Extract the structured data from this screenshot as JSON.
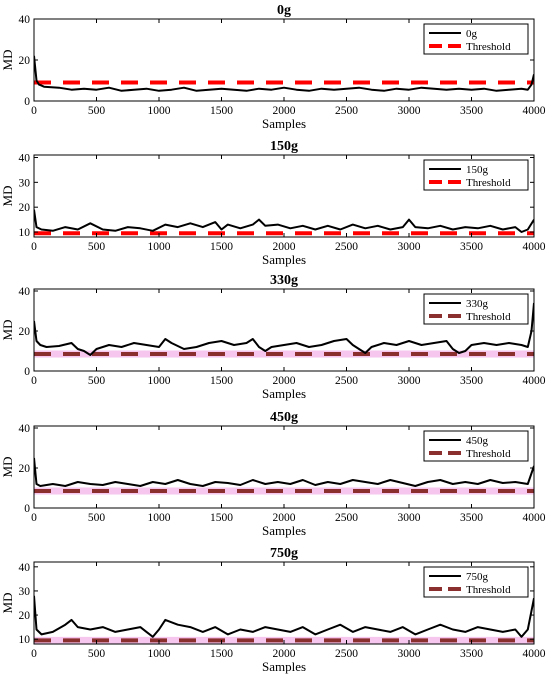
{
  "chart_data": [
    {
      "type": "line",
      "title": "0g",
      "xlabel": "Samples",
      "ylabel": "MD",
      "xlim": [
        0,
        4000
      ],
      "ylim": [
        0,
        40
      ],
      "xticks": [
        "0",
        "500",
        "1000",
        "1500",
        "2000",
        "2500",
        "3000",
        "3500",
        "4000"
      ],
      "yticks": [
        "0",
        "20",
        "40"
      ],
      "grid": false,
      "legend_position": "top-right",
      "series": [
        {
          "name": "0g",
          "color": "#000000",
          "x": [
            0,
            20,
            40,
            60,
            80,
            200,
            300,
            400,
            500,
            600,
            700,
            800,
            900,
            1000,
            1100,
            1200,
            1300,
            1400,
            1500,
            1600,
            1700,
            1800,
            1900,
            2000,
            2100,
            2200,
            2300,
            2400,
            2500,
            2600,
            2700,
            2800,
            2900,
            3000,
            3100,
            3200,
            3300,
            3400,
            3500,
            3600,
            3700,
            3800,
            3900,
            3950,
            3980,
            4000
          ],
          "y": [
            22,
            10,
            8,
            7.5,
            7,
            6.5,
            5.5,
            6,
            5.5,
            6.5,
            5,
            5.5,
            6,
            5,
            5.5,
            6.5,
            5,
            5.5,
            6,
            5.5,
            5,
            6,
            5.5,
            6.5,
            5.5,
            5,
            6,
            5.5,
            6,
            6.5,
            5.5,
            5,
            6,
            5.5,
            6.5,
            6,
            5.5,
            6,
            5.5,
            6,
            5,
            5.5,
            6,
            5.5,
            8,
            13
          ]
        },
        {
          "name": "Threshold",
          "color": "#ff0000",
          "dashed": true,
          "x": [
            0,
            4000
          ],
          "y": [
            9,
            9
          ]
        }
      ]
    },
    {
      "type": "line",
      "title": "150g",
      "xlabel": "Samples",
      "ylabel": "MD",
      "xlim": [
        0,
        4000
      ],
      "ylim": [
        8,
        41
      ],
      "xticks": [
        "0",
        "500",
        "1000",
        "1500",
        "2000",
        "2500",
        "3000",
        "3500",
        "4000"
      ],
      "yticks": [
        "10",
        "20",
        "30",
        "40"
      ],
      "grid": false,
      "legend_position": "top-right",
      "series": [
        {
          "name": "150g",
          "color": "#000000",
          "x": [
            0,
            20,
            60,
            150,
            250,
            350,
            450,
            550,
            650,
            750,
            850,
            950,
            1050,
            1150,
            1250,
            1350,
            1450,
            1500,
            1550,
            1650,
            1750,
            1800,
            1850,
            1950,
            2050,
            2150,
            2250,
            2350,
            2450,
            2550,
            2650,
            2750,
            2850,
            2950,
            3000,
            3050,
            3150,
            3250,
            3350,
            3450,
            3550,
            3650,
            3750,
            3850,
            3900,
            3950,
            4000
          ],
          "y": [
            19,
            12,
            11,
            10.5,
            12,
            11,
            13.5,
            11,
            10.5,
            12,
            11.5,
            10.5,
            13,
            12,
            13.5,
            12,
            14,
            11,
            13,
            11.5,
            13,
            15,
            12.5,
            13,
            11.5,
            12.5,
            11,
            12.5,
            11,
            13,
            11.5,
            12.5,
            11,
            12,
            15,
            12,
            11.5,
            12.5,
            11,
            12,
            11.5,
            12.5,
            11,
            12,
            10,
            11,
            15
          ]
        },
        {
          "name": "Threshold",
          "color": "#ff0000",
          "dashed": true,
          "x": [
            0,
            4000
          ],
          "y": [
            9.5,
            9.5
          ]
        }
      ]
    },
    {
      "type": "line",
      "title": "330g",
      "xlabel": "Samples",
      "ylabel": "MD",
      "xlim": [
        0,
        4000
      ],
      "ylim": [
        0,
        41
      ],
      "xticks": [
        "0",
        "500",
        "1000",
        "1500",
        "2000",
        "2500",
        "3000",
        "3500",
        "4000"
      ],
      "yticks": [
        "0",
        "20",
        "40"
      ],
      "grid": false,
      "legend_position": "top-right",
      "series": [
        {
          "name": "330g",
          "color": "#000000",
          "x": [
            0,
            20,
            50,
            100,
            200,
            300,
            350,
            400,
            450,
            500,
            600,
            700,
            800,
            900,
            1000,
            1050,
            1100,
            1200,
            1300,
            1400,
            1500,
            1600,
            1700,
            1750,
            1800,
            1850,
            1900,
            2000,
            2100,
            2200,
            2300,
            2400,
            2500,
            2550,
            2600,
            2650,
            2700,
            2800,
            2900,
            3000,
            3100,
            3200,
            3300,
            3350,
            3400,
            3450,
            3500,
            3600,
            3700,
            3800,
            3900,
            3950,
            3980,
            4000
          ],
          "y": [
            25,
            15,
            13,
            12,
            12.5,
            14,
            11,
            10,
            8,
            11,
            13,
            12,
            14,
            13,
            12,
            16,
            14,
            11,
            12,
            14,
            15,
            13,
            14,
            16,
            12,
            10,
            12,
            13,
            14,
            12,
            13,
            15,
            16,
            13,
            11,
            9,
            12,
            14,
            13,
            15,
            13,
            14,
            15,
            11,
            9,
            10,
            13,
            14,
            13,
            14,
            13,
            12,
            20,
            34
          ]
        },
        {
          "name": "Threshold",
          "color": "#8b2e2e",
          "dashed": true,
          "x": [
            0,
            4000
          ],
          "y": [
            8.5,
            8.5
          ]
        }
      ]
    },
    {
      "type": "line",
      "title": "450g",
      "xlabel": "Samples",
      "ylabel": "MD",
      "xlim": [
        0,
        4000
      ],
      "ylim": [
        0,
        41
      ],
      "xticks": [
        "0",
        "500",
        "1000",
        "1500",
        "2000",
        "2500",
        "3000",
        "3500",
        "4000"
      ],
      "yticks": [
        "0",
        "20",
        "40"
      ],
      "grid": false,
      "legend_position": "top-right",
      "series": [
        {
          "name": "450g",
          "color": "#000000",
          "x": [
            0,
            20,
            50,
            150,
            250,
            350,
            450,
            550,
            650,
            750,
            850,
            950,
            1050,
            1150,
            1250,
            1350,
            1450,
            1550,
            1650,
            1750,
            1850,
            1950,
            2050,
            2150,
            2250,
            2350,
            2450,
            2550,
            2650,
            2750,
            2850,
            2950,
            3050,
            3150,
            3250,
            3350,
            3450,
            3550,
            3650,
            3750,
            3850,
            3950,
            4000
          ],
          "y": [
            25,
            12,
            11,
            12,
            11,
            13,
            12,
            11.5,
            13,
            12,
            11,
            13,
            12,
            14,
            12,
            11,
            13,
            12.5,
            11.5,
            14,
            12,
            13,
            12,
            14,
            11.5,
            13,
            12,
            14,
            13,
            12,
            14,
            12.5,
            11,
            13,
            14,
            12,
            13,
            12,
            14,
            12.5,
            13,
            12,
            21
          ]
        },
        {
          "name": "Threshold",
          "color": "#8b2e2e",
          "dashed": true,
          "x": [
            0,
            4000
          ],
          "y": [
            8.5,
            8.5
          ]
        }
      ]
    },
    {
      "type": "line",
      "title": "750g",
      "xlabel": "Samples",
      "ylabel": "MD",
      "xlim": [
        0,
        4000
      ],
      "ylim": [
        8,
        42
      ],
      "xticks": [
        "0",
        "500",
        "1000",
        "1500",
        "2000",
        "2500",
        "3000",
        "3500",
        "4000"
      ],
      "yticks": [
        "10",
        "20",
        "30",
        "40"
      ],
      "grid": false,
      "legend_position": "top-right",
      "series": [
        {
          "name": "750g",
          "color": "#000000",
          "x": [
            0,
            20,
            60,
            150,
            250,
            300,
            350,
            450,
            550,
            650,
            750,
            850,
            900,
            950,
            1000,
            1050,
            1150,
            1250,
            1350,
            1450,
            1550,
            1650,
            1750,
            1850,
            1950,
            2050,
            2150,
            2250,
            2350,
            2450,
            2550,
            2650,
            2750,
            2850,
            2950,
            3050,
            3150,
            3250,
            3350,
            3450,
            3550,
            3650,
            3750,
            3850,
            3900,
            3950,
            4000
          ],
          "y": [
            28,
            14,
            12,
            13,
            16,
            18,
            15,
            14,
            15,
            13,
            14,
            15,
            13,
            11,
            14,
            18,
            16,
            15,
            13,
            15,
            12,
            14,
            13,
            15,
            14,
            13,
            15,
            12,
            14,
            16,
            13,
            15,
            14,
            13,
            15,
            12,
            14,
            16,
            14,
            13,
            15,
            14,
            13,
            14,
            11,
            14,
            27
          ]
        },
        {
          "name": "Threshold",
          "color": "#8b2e2e",
          "dashed": true,
          "x": [
            0,
            4000
          ],
          "y": [
            9.5,
            9.5
          ]
        }
      ]
    }
  ]
}
